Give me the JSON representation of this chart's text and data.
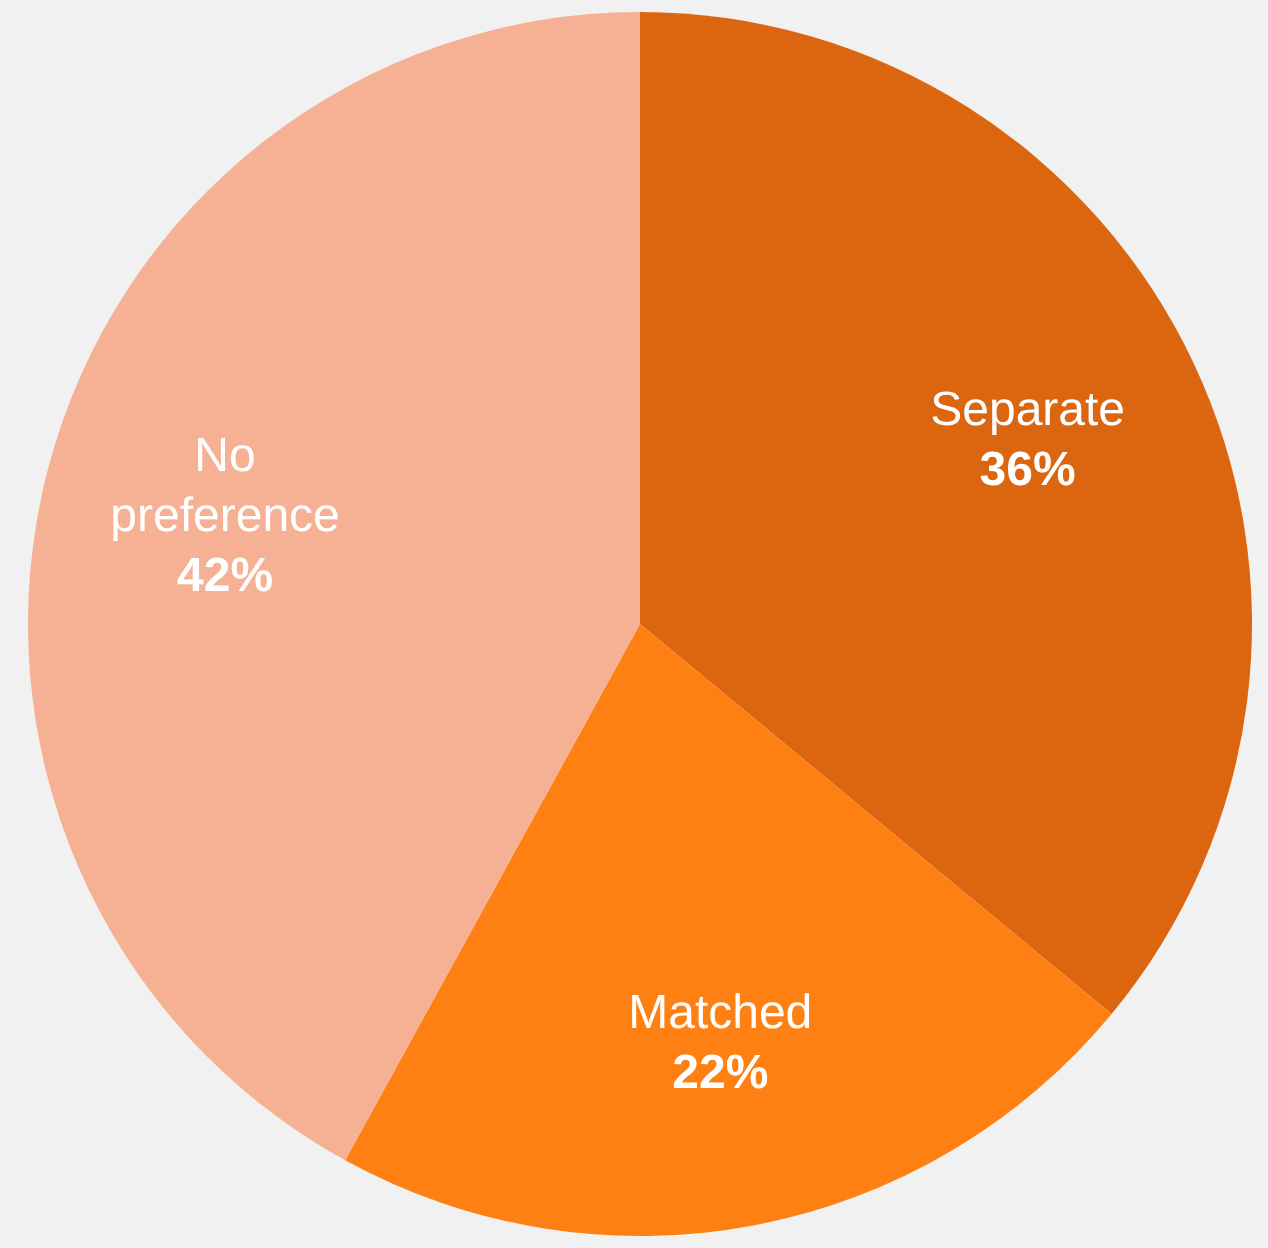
{
  "chart_data": {
    "type": "pie",
    "categories": [
      "Separate",
      "Matched",
      "No preference"
    ],
    "values": [
      36,
      22,
      42
    ],
    "value_labels": [
      "36%",
      "22%",
      "42%"
    ],
    "colors": [
      "#dc6510",
      "#ff8012",
      "#f6b194"
    ],
    "legend": false
  }
}
